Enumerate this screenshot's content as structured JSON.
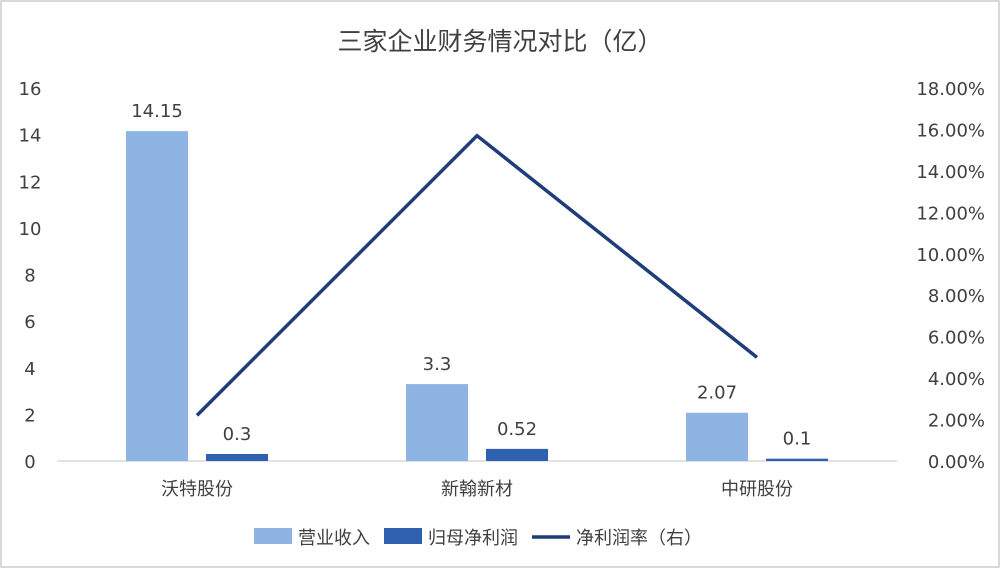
{
  "chart_data": {
    "type": "bar+line",
    "title": "三家企业财务情况对比（亿）",
    "categories": [
      "沃特股份",
      "新翰新材",
      "中研股份"
    ],
    "series": [
      {
        "name": "营业收入",
        "type": "bar",
        "axis": "left",
        "color": "#8eb4e3",
        "values": [
          14.15,
          3.3,
          2.07
        ],
        "labels": [
          "14.15",
          "3.3",
          "2.07"
        ]
      },
      {
        "name": "归母净利润",
        "type": "bar",
        "axis": "left",
        "color": "#2e62b0",
        "values": [
          0.3,
          0.52,
          0.1
        ],
        "labels": [
          "0.3",
          "0.52",
          "0.1"
        ]
      },
      {
        "name": "净利润率（右）",
        "type": "line",
        "axis": "right",
        "color": "#1f3d7a",
        "values": [
          2.2,
          15.7,
          5.0
        ]
      }
    ],
    "y_left": {
      "range": [
        0,
        16
      ],
      "ticks": [
        "0",
        "2",
        "4",
        "6",
        "8",
        "10",
        "12",
        "14",
        "16"
      ]
    },
    "y_right": {
      "range": [
        0,
        18
      ],
      "unit": "%",
      "ticks": [
        "0.00%",
        "2.00%",
        "4.00%",
        "6.00%",
        "8.00%",
        "10.00%",
        "12.00%",
        "14.00%",
        "16.00%",
        "18.00%"
      ]
    },
    "grid": false,
    "legend_position": "bottom"
  }
}
